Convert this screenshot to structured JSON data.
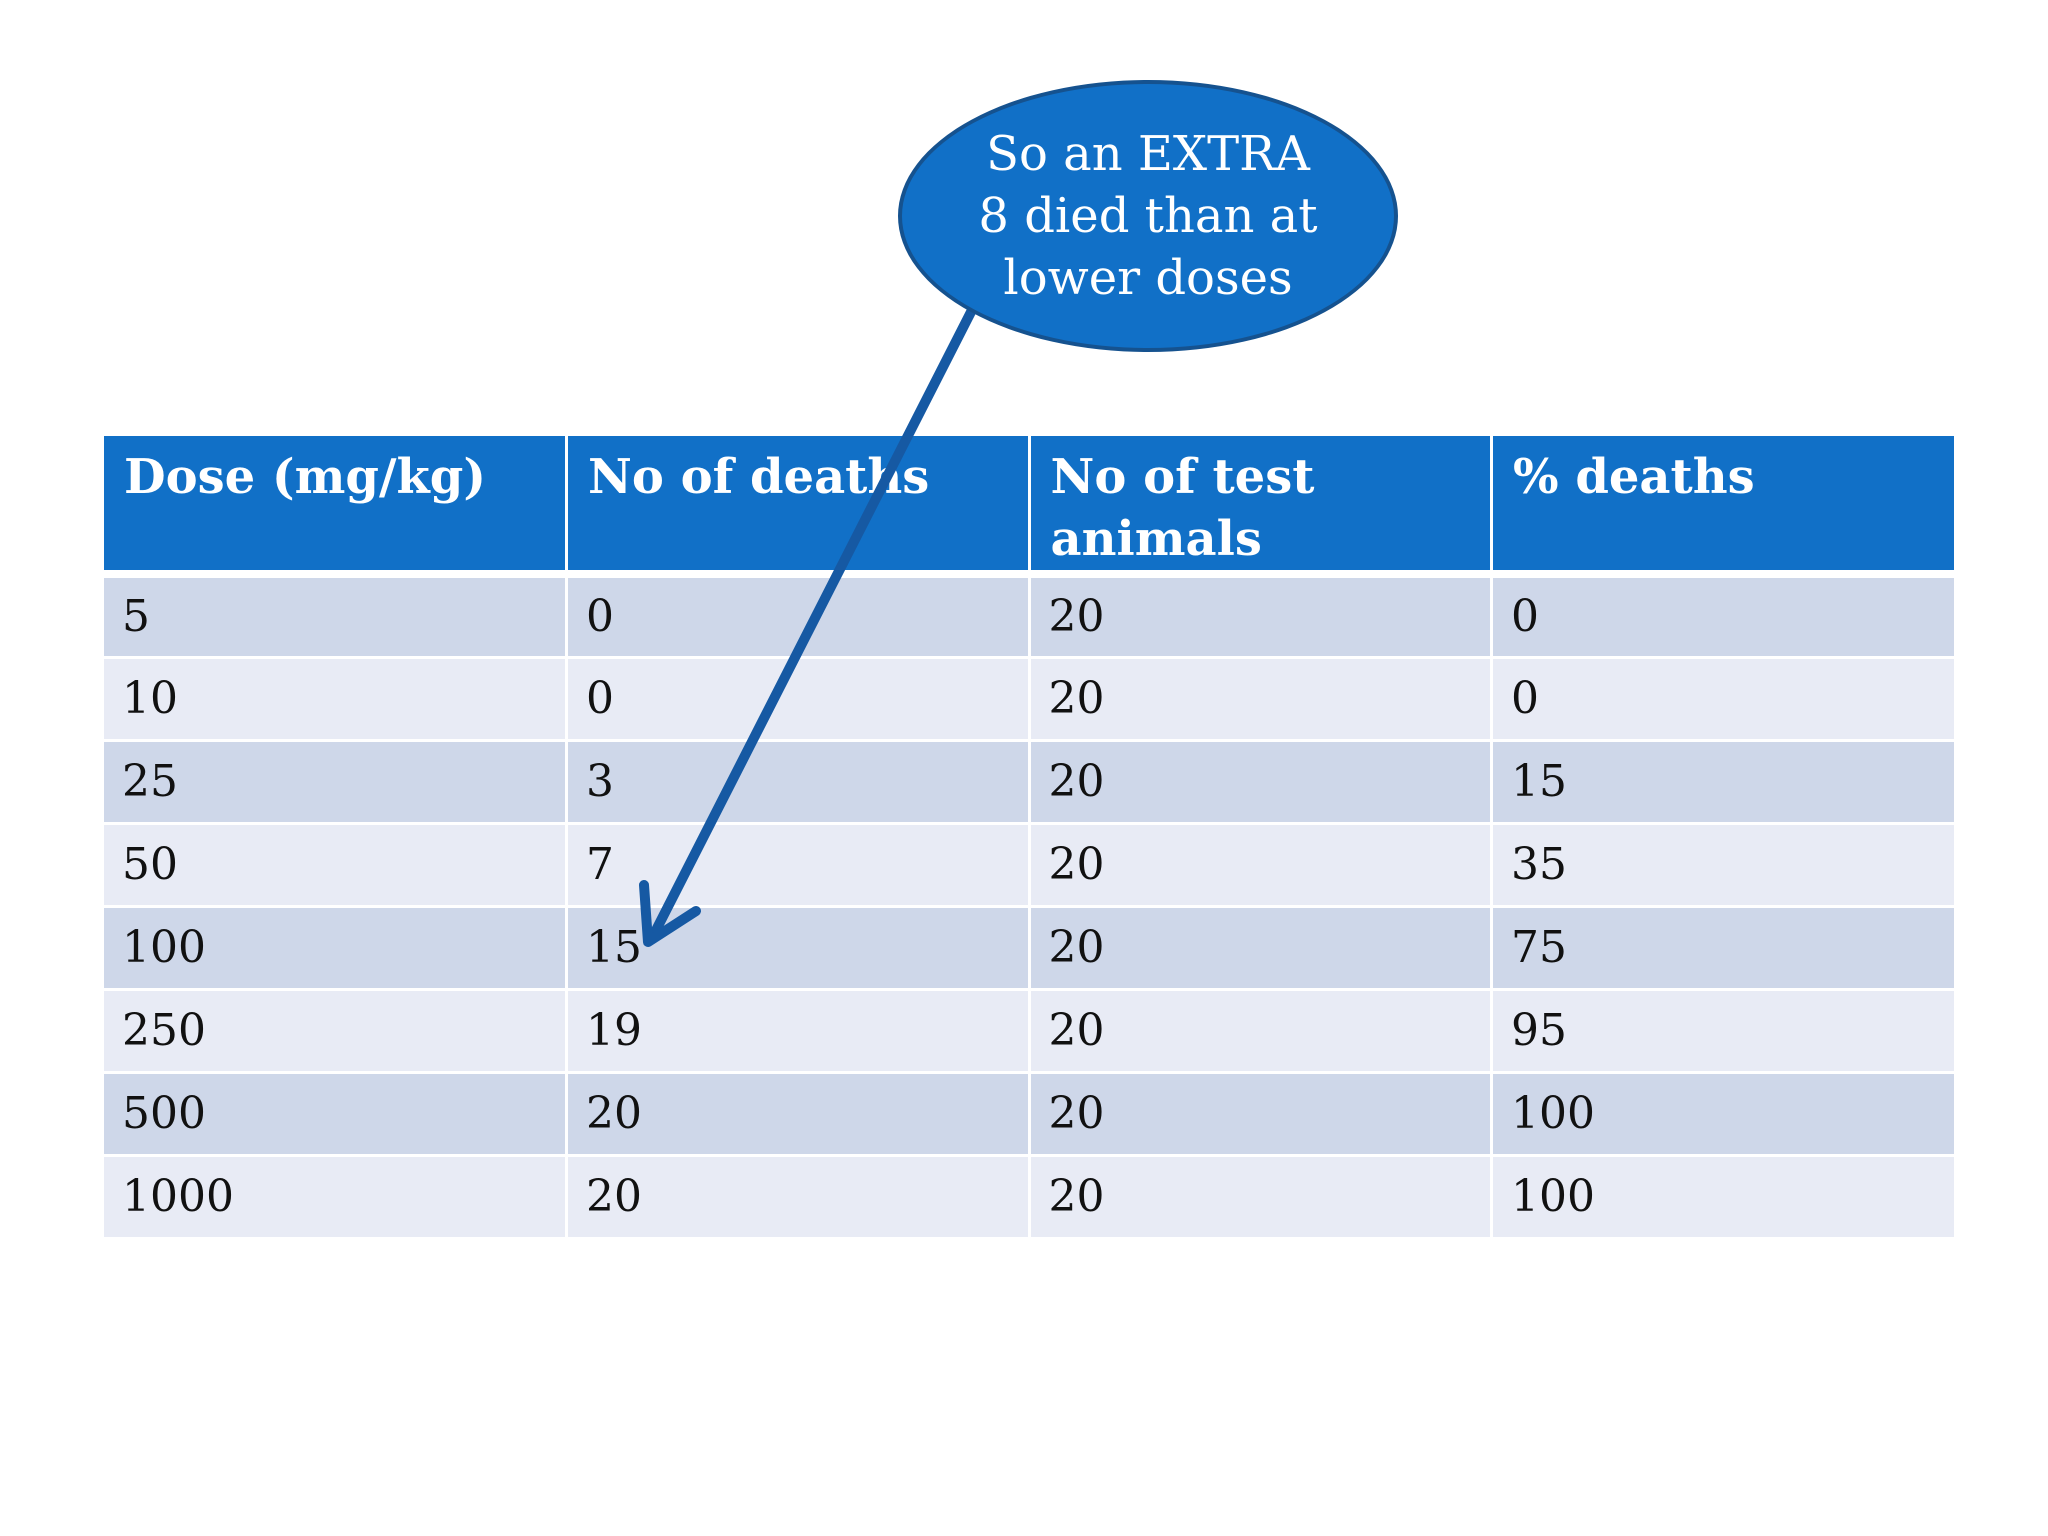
{
  "callout": {
    "text": "So an EXTRA 8 died than at lower doses"
  },
  "table": {
    "headers": [
      "Dose (mg/kg)",
      "No of deaths",
      "No of test animals",
      "% deaths"
    ],
    "rows": [
      [
        "5",
        "0",
        "20",
        "0"
      ],
      [
        "10",
        "0",
        "20",
        "0"
      ],
      [
        "25",
        "3",
        "20",
        "15"
      ],
      [
        "50",
        "7",
        "20",
        "35"
      ],
      [
        "100",
        "15",
        "20",
        "75"
      ],
      [
        "250",
        "19",
        "20",
        "95"
      ],
      [
        "500",
        "20",
        "20",
        "100"
      ],
      [
        "1000",
        "20",
        "20",
        "100"
      ]
    ]
  },
  "colors": {
    "header_blue": "#1170c7",
    "row_dark": "#ced7e9",
    "row_light": "#e8ebf5",
    "arrow": "#1659a3",
    "callout_border": "#15528f"
  }
}
